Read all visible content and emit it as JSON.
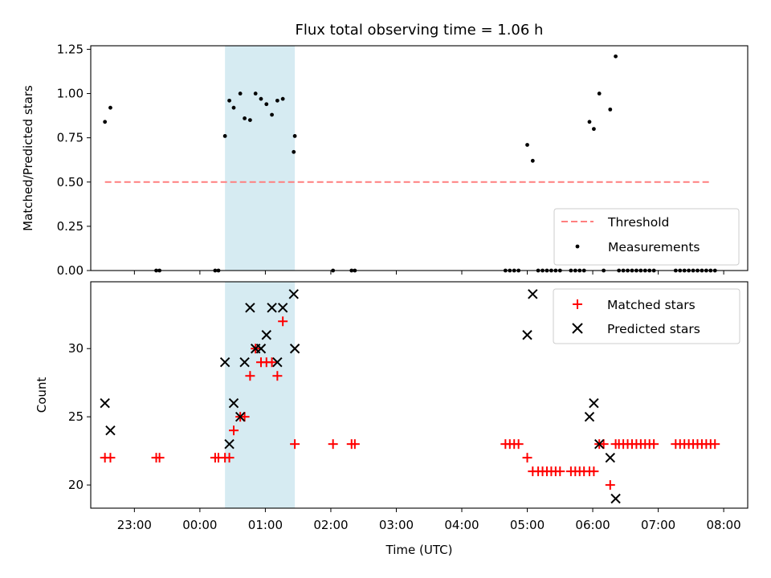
{
  "chart_data": [
    {
      "type": "scatter",
      "title": "Flux total observing time = 1.06 h",
      "xlabel": "",
      "ylabel": "Matched/Predicted stars",
      "xlim": [
        "22:20",
        "08:22"
      ],
      "ylim": [
        0,
        1.27
      ],
      "yticks": [
        "0.00",
        "0.25",
        "0.50",
        "0.75",
        "1.00",
        "1.25"
      ],
      "xticks": [
        "23:00",
        "00:00",
        "01:00",
        "02:00",
        "03:00",
        "04:00",
        "05:00",
        "06:00",
        "07:00",
        "08:00"
      ],
      "shaded_interval": [
        "00:23",
        "01:27"
      ],
      "threshold": {
        "name": "Threshold",
        "value": 0.5,
        "x_range": [
          "22:33",
          "07:48"
        ],
        "color": "#ff7f7f"
      },
      "series": [
        {
          "name": "Measurements",
          "color": "#000000",
          "points": [
            [
              "22:33",
              0.84
            ],
            [
              "22:38",
              0.92
            ],
            [
              "23:20",
              0.0
            ],
            [
              "23:23",
              0.0
            ],
            [
              "00:14",
              0.0
            ],
            [
              "00:17",
              0.0
            ],
            [
              "00:23",
              0.76
            ],
            [
              "00:27",
              0.96
            ],
            [
              "00:31",
              0.92
            ],
            [
              "00:37",
              1.0
            ],
            [
              "00:41",
              0.86
            ],
            [
              "00:46",
              0.85
            ],
            [
              "00:51",
              1.0
            ],
            [
              "00:56",
              0.97
            ],
            [
              "01:01",
              0.94
            ],
            [
              "01:06",
              0.88
            ],
            [
              "01:11",
              0.96
            ],
            [
              "01:16",
              0.97
            ],
            [
              "01:26",
              0.67
            ],
            [
              "01:27",
              0.76
            ],
            [
              "02:02",
              0.0
            ],
            [
              "02:19",
              0.0
            ],
            [
              "02:22",
              0.0
            ],
            [
              "04:40",
              0.0
            ],
            [
              "04:44",
              0.0
            ],
            [
              "04:48",
              0.0
            ],
            [
              "04:52",
              0.0
            ],
            [
              "05:00",
              0.71
            ],
            [
              "05:05",
              0.62
            ],
            [
              "05:10",
              0.0
            ],
            [
              "05:14",
              0.0
            ],
            [
              "05:18",
              0.0
            ],
            [
              "05:22",
              0.0
            ],
            [
              "05:26",
              0.0
            ],
            [
              "05:30",
              0.0
            ],
            [
              "05:40",
              0.0
            ],
            [
              "05:44",
              0.0
            ],
            [
              "05:48",
              0.0
            ],
            [
              "05:52",
              0.0
            ],
            [
              "05:57",
              0.84
            ],
            [
              "06:01",
              0.8
            ],
            [
              "06:06",
              1.0
            ],
            [
              "06:10",
              0.0
            ],
            [
              "06:16",
              0.91
            ],
            [
              "06:21",
              1.21
            ],
            [
              "06:24",
              0.0
            ],
            [
              "06:28",
              0.0
            ],
            [
              "06:32",
              0.0
            ],
            [
              "06:36",
              0.0
            ],
            [
              "06:40",
              0.0
            ],
            [
              "06:44",
              0.0
            ],
            [
              "06:48",
              0.0
            ],
            [
              "06:52",
              0.0
            ],
            [
              "06:56",
              0.0
            ],
            [
              "07:16",
              0.0
            ],
            [
              "07:20",
              0.0
            ],
            [
              "07:24",
              0.0
            ],
            [
              "07:28",
              0.0
            ],
            [
              "07:32",
              0.0
            ],
            [
              "07:36",
              0.0
            ],
            [
              "07:40",
              0.0
            ],
            [
              "07:44",
              0.0
            ],
            [
              "07:48",
              0.0
            ],
            [
              "07:52",
              0.0
            ]
          ]
        }
      ],
      "legend": {
        "position": "lower right",
        "entries": [
          "Threshold",
          "Measurements"
        ]
      }
    },
    {
      "type": "scatter",
      "title": "",
      "xlabel": "Time (UTC)",
      "ylabel": "Count",
      "xlim": [
        "22:20",
        "08:22"
      ],
      "ylim": [
        18.3,
        34.9
      ],
      "yticks": [
        "20",
        "25",
        "30"
      ],
      "xticks": [
        "23:00",
        "00:00",
        "01:00",
        "02:00",
        "03:00",
        "04:00",
        "05:00",
        "06:00",
        "07:00",
        "08:00"
      ],
      "shaded_interval": [
        "00:23",
        "01:27"
      ],
      "series": [
        {
          "name": "Matched stars",
          "marker": "plus",
          "color": "#ff0000",
          "points": [
            [
              "22:33",
              22
            ],
            [
              "22:38",
              22
            ],
            [
              "23:20",
              22
            ],
            [
              "23:23",
              22
            ],
            [
              "00:14",
              22
            ],
            [
              "00:17",
              22
            ],
            [
              "00:23",
              22
            ],
            [
              "00:27",
              22
            ],
            [
              "00:31",
              24
            ],
            [
              "00:37",
              25
            ],
            [
              "00:41",
              25
            ],
            [
              "00:46",
              28
            ],
            [
              "00:51",
              30
            ],
            [
              "00:56",
              29
            ],
            [
              "01:01",
              29
            ],
            [
              "01:06",
              29
            ],
            [
              "01:11",
              28
            ],
            [
              "01:16",
              32
            ],
            [
              "01:27",
              23
            ],
            [
              "02:02",
              23
            ],
            [
              "02:19",
              23
            ],
            [
              "02:22",
              23
            ],
            [
              "04:40",
              23
            ],
            [
              "04:44",
              23
            ],
            [
              "04:48",
              23
            ],
            [
              "04:52",
              23
            ],
            [
              "05:00",
              22
            ],
            [
              "05:05",
              21
            ],
            [
              "05:10",
              21
            ],
            [
              "05:14",
              21
            ],
            [
              "05:18",
              21
            ],
            [
              "05:22",
              21
            ],
            [
              "05:26",
              21
            ],
            [
              "05:30",
              21
            ],
            [
              "05:40",
              21
            ],
            [
              "05:44",
              21
            ],
            [
              "05:48",
              21
            ],
            [
              "05:52",
              21
            ],
            [
              "05:57",
              21
            ],
            [
              "06:01",
              21
            ],
            [
              "06:06",
              23
            ],
            [
              "06:10",
              23
            ],
            [
              "06:16",
              20
            ],
            [
              "06:21",
              23
            ],
            [
              "06:24",
              23
            ],
            [
              "06:28",
              23
            ],
            [
              "06:32",
              23
            ],
            [
              "06:36",
              23
            ],
            [
              "06:40",
              23
            ],
            [
              "06:44",
              23
            ],
            [
              "06:48",
              23
            ],
            [
              "06:52",
              23
            ],
            [
              "06:56",
              23
            ],
            [
              "07:16",
              23
            ],
            [
              "07:20",
              23
            ],
            [
              "07:24",
              23
            ],
            [
              "07:28",
              23
            ],
            [
              "07:32",
              23
            ],
            [
              "07:36",
              23
            ],
            [
              "07:40",
              23
            ],
            [
              "07:44",
              23
            ],
            [
              "07:48",
              23
            ],
            [
              "07:52",
              23
            ]
          ]
        },
        {
          "name": "Predicted stars",
          "marker": "x",
          "color": "#000000",
          "points": [
            [
              "22:33",
              26
            ],
            [
              "22:38",
              24
            ],
            [
              "00:23",
              29
            ],
            [
              "00:27",
              23
            ],
            [
              "00:31",
              26
            ],
            [
              "00:37",
              25
            ],
            [
              "00:41",
              29
            ],
            [
              "00:46",
              33
            ],
            [
              "00:51",
              30
            ],
            [
              "00:56",
              30
            ],
            [
              "01:01",
              31
            ],
            [
              "01:06",
              33
            ],
            [
              "01:11",
              29
            ],
            [
              "01:16",
              33
            ],
            [
              "01:26",
              34
            ],
            [
              "01:27",
              30
            ],
            [
              "05:00",
              31
            ],
            [
              "05:05",
              34
            ],
            [
              "05:57",
              25
            ],
            [
              "06:01",
              26
            ],
            [
              "06:06",
              23
            ],
            [
              "06:16",
              22
            ],
            [
              "06:21",
              19
            ]
          ]
        }
      ],
      "legend": {
        "position": "upper right",
        "entries": [
          "Matched stars",
          "Predicted stars"
        ]
      }
    }
  ]
}
